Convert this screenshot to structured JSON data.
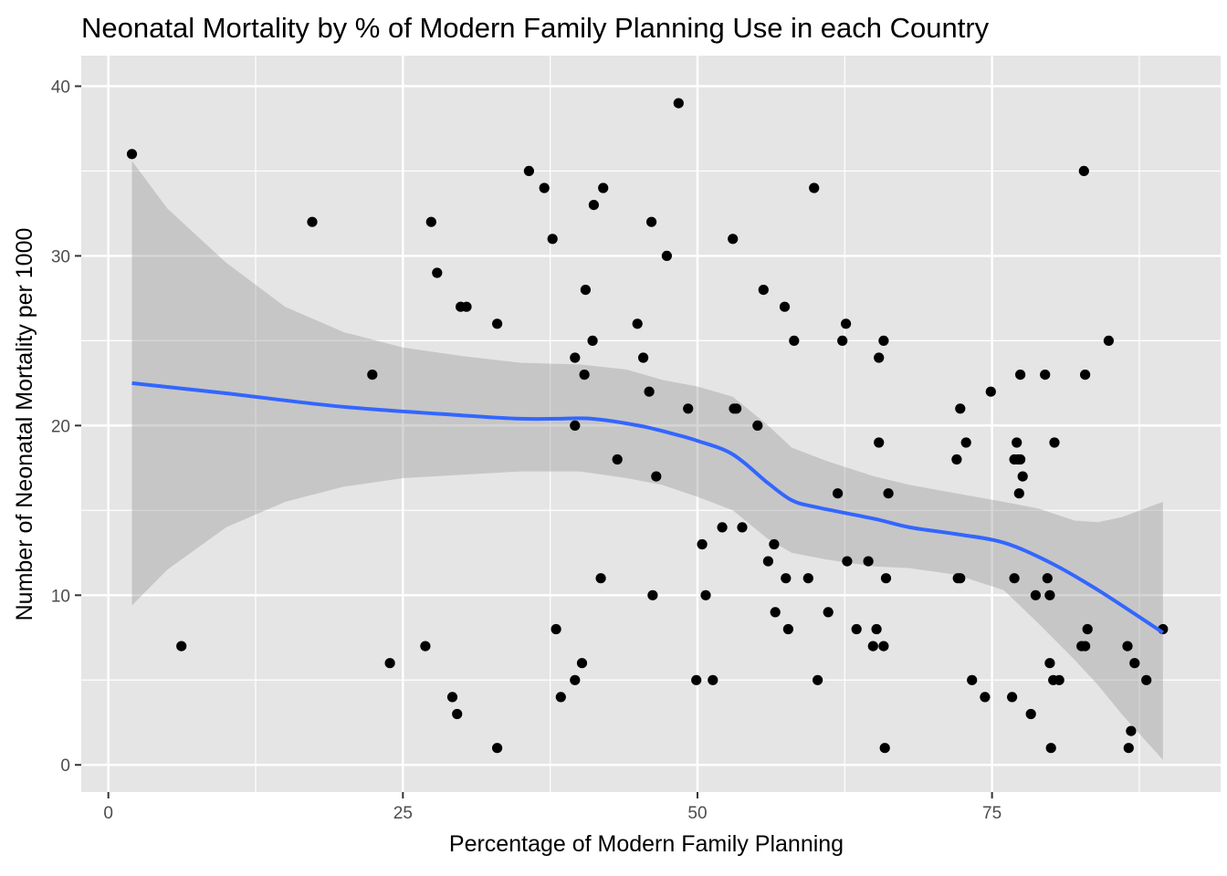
{
  "chart_data": {
    "type": "scatter",
    "title": "Neonatal Mortality by % of Modern Family Planning Use in each Country",
    "xlabel": "Percentage of Modern Family Planning",
    "ylabel": "Number of Neonatal Mortality per 1000",
    "xlim": [
      -2.3,
      94.4
    ],
    "ylim": [
      -1.6,
      41.8
    ],
    "x_ticks": [
      0,
      25,
      50,
      75
    ],
    "x_tick_labels": [
      "0",
      "25",
      "50",
      "75"
    ],
    "y_ticks": [
      0,
      10,
      20,
      30,
      40
    ],
    "y_tick_labels": [
      "0",
      "10",
      "20",
      "30",
      "40"
    ],
    "grid": true,
    "legend": "none",
    "colors": {
      "panel_background": "#e5e5e5",
      "grid": "#ffffff",
      "points": "#000000",
      "smooth_line": "#3366ff",
      "confidence_band": "#999999"
    },
    "series": [
      {
        "kind": "points",
        "points": [
          [
            2.0,
            36
          ],
          [
            6.2,
            7
          ],
          [
            17.3,
            32
          ],
          [
            22.4,
            23
          ],
          [
            23.9,
            6
          ],
          [
            26.9,
            7
          ],
          [
            27.4,
            32
          ],
          [
            27.9,
            29
          ],
          [
            29.2,
            4
          ],
          [
            29.6,
            3
          ],
          [
            29.9,
            27
          ],
          [
            30.4,
            27
          ],
          [
            33.0,
            1
          ],
          [
            33.0,
            26
          ],
          [
            35.7,
            35
          ],
          [
            37.0,
            34
          ],
          [
            37.7,
            31
          ],
          [
            38.0,
            8
          ],
          [
            38.4,
            4
          ],
          [
            39.6,
            5
          ],
          [
            39.6,
            24
          ],
          [
            39.6,
            20
          ],
          [
            40.2,
            6
          ],
          [
            40.5,
            28
          ],
          [
            40.4,
            23
          ],
          [
            41.2,
            33
          ],
          [
            41.1,
            25
          ],
          [
            41.8,
            11
          ],
          [
            42.0,
            34
          ],
          [
            43.2,
            18
          ],
          [
            44.9,
            26
          ],
          [
            45.4,
            24
          ],
          [
            45.9,
            22
          ],
          [
            46.1,
            32
          ],
          [
            46.2,
            10
          ],
          [
            46.5,
            17
          ],
          [
            47.4,
            30
          ],
          [
            48.4,
            39
          ],
          [
            49.2,
            21
          ],
          [
            49.9,
            5
          ],
          [
            50.4,
            13
          ],
          [
            50.7,
            10
          ],
          [
            51.3,
            5
          ],
          [
            52.1,
            14
          ],
          [
            53.0,
            31
          ],
          [
            53.1,
            21
          ],
          [
            53.3,
            21
          ],
          [
            53.8,
            14
          ],
          [
            55.1,
            20
          ],
          [
            55.6,
            28
          ],
          [
            56.0,
            12
          ],
          [
            56.5,
            13
          ],
          [
            56.6,
            9
          ],
          [
            57.5,
            11
          ],
          [
            57.4,
            27
          ],
          [
            57.7,
            8
          ],
          [
            58.2,
            25
          ],
          [
            59.4,
            11
          ],
          [
            59.9,
            34
          ],
          [
            60.2,
            5
          ],
          [
            61.1,
            9
          ],
          [
            61.9,
            16
          ],
          [
            62.3,
            25
          ],
          [
            62.6,
            26
          ],
          [
            62.7,
            12
          ],
          [
            63.5,
            8
          ],
          [
            64.5,
            12
          ],
          [
            64.9,
            7
          ],
          [
            65.2,
            8
          ],
          [
            65.4,
            24
          ],
          [
            65.4,
            19
          ],
          [
            65.8,
            7
          ],
          [
            65.8,
            25
          ],
          [
            66.0,
            11
          ],
          [
            65.9,
            1
          ],
          [
            66.2,
            16
          ],
          [
            72.0,
            18
          ],
          [
            72.1,
            11
          ],
          [
            72.3,
            11
          ],
          [
            72.3,
            21
          ],
          [
            72.8,
            19
          ],
          [
            73.3,
            5
          ],
          [
            74.4,
            4
          ],
          [
            74.9,
            22
          ],
          [
            76.7,
            4
          ],
          [
            76.9,
            11
          ],
          [
            76.9,
            18
          ],
          [
            77.1,
            19
          ],
          [
            77.2,
            18
          ],
          [
            77.3,
            16
          ],
          [
            77.4,
            23
          ],
          [
            77.4,
            18
          ],
          [
            77.6,
            17
          ],
          [
            78.3,
            3
          ],
          [
            78.7,
            10
          ],
          [
            79.5,
            23
          ],
          [
            79.7,
            11
          ],
          [
            79.9,
            10
          ],
          [
            79.9,
            6
          ],
          [
            80.0,
            1
          ],
          [
            80.2,
            5
          ],
          [
            80.3,
            19
          ],
          [
            80.7,
            5
          ],
          [
            82.6,
            7
          ],
          [
            82.8,
            35
          ],
          [
            82.9,
            7
          ],
          [
            82.9,
            23
          ],
          [
            83.1,
            8
          ],
          [
            84.9,
            25
          ],
          [
            86.5,
            7
          ],
          [
            86.6,
            1
          ],
          [
            86.8,
            2
          ],
          [
            87.1,
            6
          ],
          [
            88.1,
            5
          ],
          [
            89.5,
            8
          ]
        ]
      },
      {
        "kind": "smooth",
        "points": [
          [
            2.0,
            22.5
          ],
          [
            10,
            21.9
          ],
          [
            20,
            21.1
          ],
          [
            30,
            20.6
          ],
          [
            35,
            20.4
          ],
          [
            38,
            20.4
          ],
          [
            41,
            20.4
          ],
          [
            45,
            20.0
          ],
          [
            48,
            19.5
          ],
          [
            50,
            19.1
          ],
          [
            53,
            18.3
          ],
          [
            56,
            16.6
          ],
          [
            58,
            15.6
          ],
          [
            60,
            15.2
          ],
          [
            65,
            14.5
          ],
          [
            68,
            14.0
          ],
          [
            72,
            13.6
          ],
          [
            76,
            13.1
          ],
          [
            80,
            11.9
          ],
          [
            84,
            10.3
          ],
          [
            89.5,
            7.8
          ]
        ],
        "band": [
          [
            2.0,
            9.4,
            35.6
          ],
          [
            5,
            11.5,
            32.8
          ],
          [
            10,
            14.0,
            29.6
          ],
          [
            15,
            15.5,
            27.0
          ],
          [
            20,
            16.4,
            25.5
          ],
          [
            25,
            16.9,
            24.6
          ],
          [
            30,
            17.1,
            24.1
          ],
          [
            35,
            17.3,
            23.7
          ],
          [
            40,
            17.3,
            23.6
          ],
          [
            44,
            16.9,
            23.3
          ],
          [
            47,
            16.5,
            22.7
          ],
          [
            50,
            15.8,
            22.3
          ],
          [
            53,
            15.0,
            21.7
          ],
          [
            56,
            13.3,
            20.0
          ],
          [
            58,
            12.5,
            18.7
          ],
          [
            61,
            12.1,
            17.9
          ],
          [
            65,
            11.7,
            17.0
          ],
          [
            68,
            11.6,
            16.5
          ],
          [
            72,
            11.2,
            16.0
          ],
          [
            76,
            10.3,
            15.5
          ],
          [
            79,
            8.3,
            15.1
          ],
          [
            82,
            6.2,
            14.4
          ],
          [
            84,
            4.7,
            14.3
          ],
          [
            86,
            3.0,
            14.6
          ],
          [
            89.5,
            0.3,
            15.5
          ]
        ]
      }
    ]
  }
}
